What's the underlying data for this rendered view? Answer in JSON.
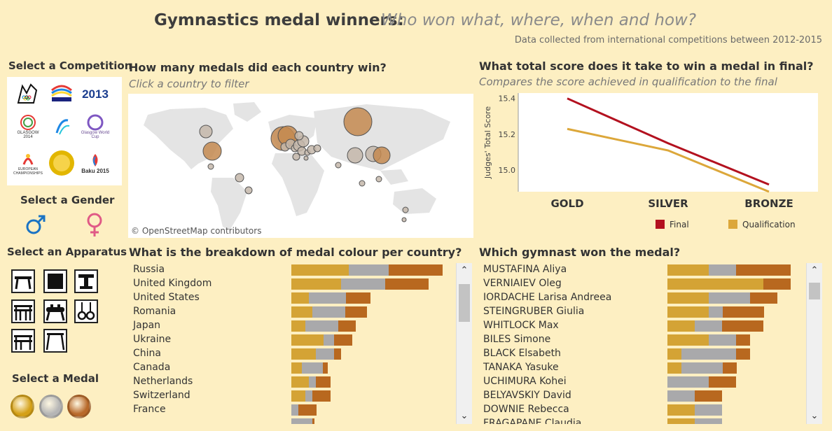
{
  "header": {
    "title": "Gymnastics medal winners:",
    "subtitle": "Who won what, where, when and how?",
    "note": "Data collected from international competitions between 2012-2015"
  },
  "sidebar": {
    "competition_label": "Select a Competition",
    "competitions": [
      {
        "name": "London 2012",
        "text": "",
        "icon": "london-2012-logo"
      },
      {
        "name": "World 2013 Championships",
        "text": "",
        "icon": "worlds-2013-logo"
      },
      {
        "name": "2013",
        "text": "2013",
        "icon": "2013-logo"
      },
      {
        "name": "Glasgow 2014",
        "text": "GLASGOW 2014",
        "icon": "glasgow-2014-logo"
      },
      {
        "name": "Nanning 2014",
        "text": "",
        "icon": "nanning-logo"
      },
      {
        "name": "Glasgow World Cup",
        "text": "Glasgow World Cup",
        "icon": "glasgow-world-cup-logo"
      },
      {
        "name": "European Championships",
        "text": "EUROPEAN CHAMPIONSHIPS",
        "icon": "european-championships-logo"
      },
      {
        "name": "Gold medal competition",
        "text": "",
        "icon": "gold-seal-logo"
      },
      {
        "name": "Baku 2015",
        "text": "Baku 2015",
        "icon": "baku-2015-logo"
      }
    ],
    "gender_label": "Select a Gender",
    "genders": [
      "male-symbol-icon",
      "female-symbol-icon"
    ],
    "apparatus_label": "Select an Apparatus",
    "apparatus": [
      "balance-beam-icon",
      "floor-icon",
      "vault-icon",
      "parallel-bars-icon",
      "pommel-horse-icon",
      "rings-icon",
      "uneven-bars-icon",
      "high-bar-icon"
    ],
    "medal_label": "Select a Medal",
    "medals": [
      {
        "name": "gold",
        "color": "#d4a017"
      },
      {
        "name": "silver",
        "color": "#b5b5b5"
      },
      {
        "name": "bronze",
        "color": "#b8692a"
      }
    ]
  },
  "map_section": {
    "title": "How many medals did each country win?",
    "subtitle": "Click a country to filter",
    "attribution": "© OpenStreetMap contributors",
    "bubble_color": "#c48a50",
    "small_bubble_color": "#c4b7aa"
  },
  "score_chart": {
    "title": "What total score does it take to win a medal in final?",
    "subtitle": "Compares the score achieved in qualification to the final"
  },
  "chart_data": {
    "type": "line",
    "categories": [
      "GOLD",
      "SILVER",
      "BRONZE"
    ],
    "ylabel": "Judges' Total Score",
    "ylim": [
      14.88,
      15.43
    ],
    "yticks": [
      "15.4",
      "15.2",
      "15.0"
    ],
    "series": [
      {
        "name": "Final",
        "color": "#b3111f",
        "values": [
          15.4,
          15.15,
          14.92
        ]
      },
      {
        "name": "Qualification",
        "color": "#dca73a",
        "values": [
          15.23,
          15.11,
          14.88
        ]
      }
    ]
  },
  "breakdown": {
    "title": "What is the breakdown of medal colour per country?",
    "colors": {
      "gold": "#d4a335",
      "silver": "#a9a9ab",
      "bronze": "#b8681f"
    },
    "rows": [
      {
        "label": "Russia",
        "gold": 82,
        "silver": 57,
        "bronze": 77
      },
      {
        "label": "United Kingdom",
        "gold": 71,
        "silver": 63,
        "bronze": 62
      },
      {
        "label": "United States",
        "gold": 25,
        "silver": 53,
        "bronze": 35
      },
      {
        "label": "Romania",
        "gold": 30,
        "silver": 47,
        "bronze": 31
      },
      {
        "label": "Japan",
        "gold": 20,
        "silver": 47,
        "bronze": 25
      },
      {
        "label": "Ukraine",
        "gold": 46,
        "silver": 15,
        "bronze": 26
      },
      {
        "label": "China",
        "gold": 35,
        "silver": 26,
        "bronze": 10
      },
      {
        "label": "Canada",
        "gold": 15,
        "silver": 30,
        "bronze": 7
      },
      {
        "label": "Netherlands",
        "gold": 25,
        "silver": 10,
        "bronze": 21
      },
      {
        "label": "Switzerland",
        "gold": 20,
        "silver": 10,
        "bronze": 26
      },
      {
        "label": "France",
        "gold": 0,
        "silver": 10,
        "bronze": 26
      },
      {
        "label": "",
        "gold": 0,
        "silver": 30,
        "bronze": 3
      }
    ]
  },
  "gymnasts": {
    "title": "Which gymnast won the medal?",
    "rows": [
      {
        "label": "MUSTAFINA Aliya",
        "gold": 59,
        "silver": 39,
        "bronze": 78
      },
      {
        "label": "VERNIAIEV Oleg",
        "gold": 137,
        "silver": 0,
        "bronze": 39
      },
      {
        "label": "IORDACHE Larisa Andreea",
        "gold": 59,
        "silver": 59,
        "bronze": 39
      },
      {
        "label": "STEINGRUBER Giulia",
        "gold": 59,
        "silver": 20,
        "bronze": 59
      },
      {
        "label": "WHITLOCK Max",
        "gold": 39,
        "silver": 39,
        "bronze": 59
      },
      {
        "label": "BILES Simone",
        "gold": 59,
        "silver": 39,
        "bronze": 20
      },
      {
        "label": "BLACK Elsabeth",
        "gold": 20,
        "silver": 78,
        "bronze": 20
      },
      {
        "label": "TANAKA Yasuke",
        "gold": 20,
        "silver": 59,
        "bronze": 20
      },
      {
        "label": "UCHIMURA Kohei",
        "gold": 0,
        "silver": 59,
        "bronze": 39
      },
      {
        "label": "BELYAVSKIY David",
        "gold": 0,
        "silver": 39,
        "bronze": 39
      },
      {
        "label": "DOWNIE Rebecca",
        "gold": 39,
        "silver": 39,
        "bronze": 0
      },
      {
        "label": "FRAGAPANE Claudia",
        "gold": 39,
        "silver": 39,
        "bronze": 0
      }
    ]
  }
}
